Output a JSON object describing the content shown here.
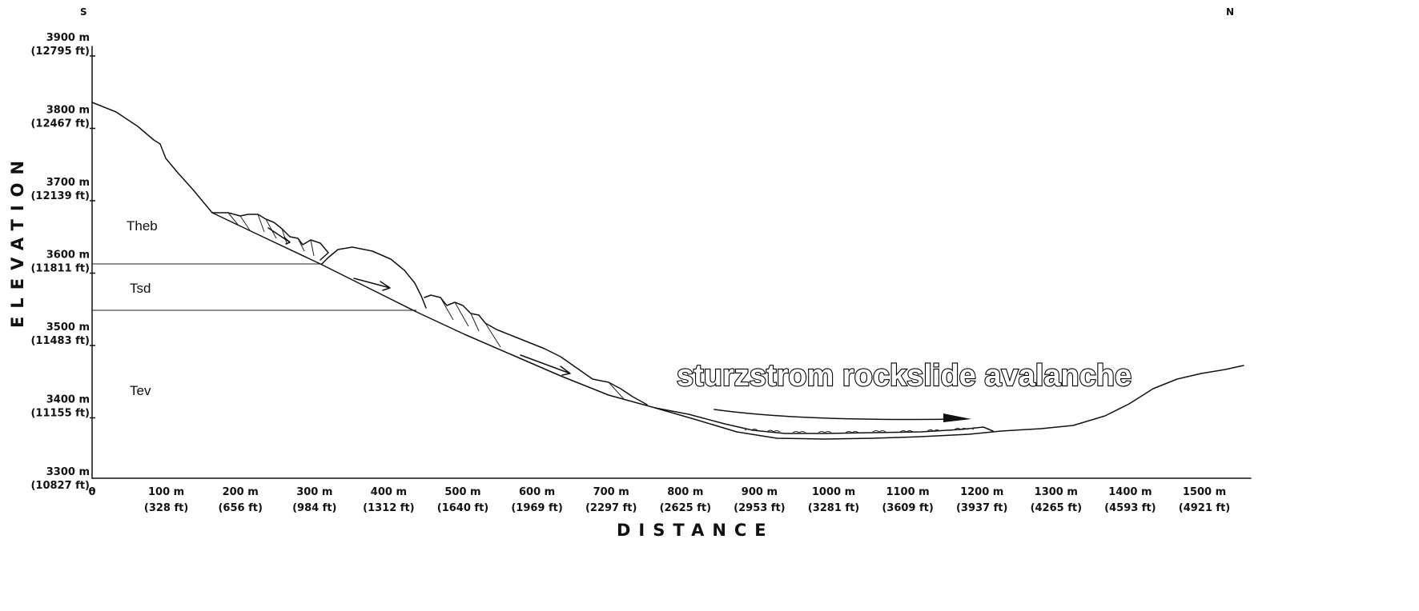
{
  "compass": {
    "south": "S",
    "north": "N"
  },
  "axes": {
    "x_label": "DISTANCE",
    "y_label": "ELEVATION",
    "x_ticks": [
      {
        "m": "0",
        "ft": ""
      },
      {
        "m": "100 m",
        "ft": "(328 ft)"
      },
      {
        "m": "200 m",
        "ft": "(656 ft)"
      },
      {
        "m": "300 m",
        "ft": "(984 ft)"
      },
      {
        "m": "400 m",
        "ft": "(1312 ft)"
      },
      {
        "m": "500 m",
        "ft": "(1640 ft)"
      },
      {
        "m": "600 m",
        "ft": "(1969 ft)"
      },
      {
        "m": "700 m",
        "ft": "(2297 ft)"
      },
      {
        "m": "800 m",
        "ft": "(2625 ft)"
      },
      {
        "m": "900 m",
        "ft": "(2953 ft)"
      },
      {
        "m": "1000 m",
        "ft": "(3281 ft)"
      },
      {
        "m": "1100 m",
        "ft": "(3609 ft)"
      },
      {
        "m": "1200 m",
        "ft": "(3937 ft)"
      },
      {
        "m": "1300 m",
        "ft": "(4265 ft)"
      },
      {
        "m": "1400 m",
        "ft": "(4593 ft)"
      },
      {
        "m": "1500 m",
        "ft": "(4921 ft)"
      }
    ],
    "y_ticks": [
      {
        "m": "3900 m",
        "ft": "(12795 ft)"
      },
      {
        "m": "3800 m",
        "ft": "(12467 ft)"
      },
      {
        "m": "3700 m",
        "ft": "(12139 ft)"
      },
      {
        "m": "3600 m",
        "ft": "(11811 ft)"
      },
      {
        "m": "3500 m",
        "ft": "(11483 ft)"
      },
      {
        "m": "3400 m",
        "ft": "(11155 ft)"
      },
      {
        "m": "3300 m",
        "ft": "(10827 ft)"
      }
    ]
  },
  "units": {
    "upper": "Theb",
    "middle": "Tsd",
    "lower": "Tev"
  },
  "title": "sturzstrom rockslide avalanche"
}
